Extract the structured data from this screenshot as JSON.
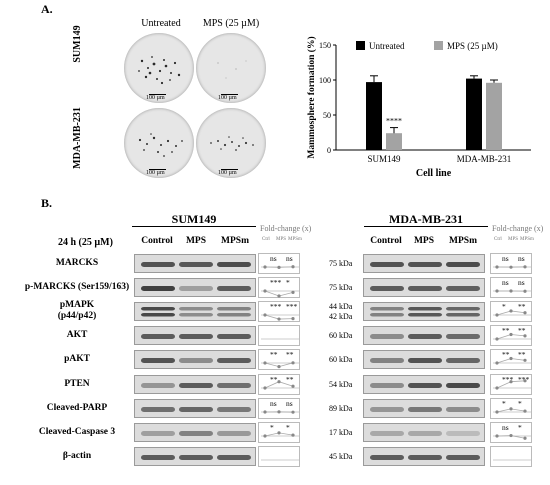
{
  "panel_a": {
    "label": "A.",
    "microscopy": {
      "col_headers": [
        "Untreated",
        "MPS (25 µM)"
      ],
      "row_labels": [
        "SUM149",
        "MDA-MB-231"
      ],
      "scale_bar": "100 µm"
    }
  },
  "chart_data": {
    "type": "bar",
    "title": "",
    "ylabel": "Mammosphere formation (%)",
    "xlabel": "Cell line",
    "categories": [
      "SUM149",
      "MDA-MB-231"
    ],
    "ylim": [
      0,
      150
    ],
    "yticks": [
      0,
      50,
      100,
      150
    ],
    "legend_position": "top-right",
    "series": [
      {
        "name": "Untreated",
        "color": "#000000",
        "values": [
          97,
          102
        ],
        "errors": [
          9,
          4
        ]
      },
      {
        "name": "MPS (25 µM)",
        "color": "#a3a3a3",
        "values": [
          24,
          96
        ],
        "errors": [
          8,
          4
        ]
      }
    ],
    "annotations": [
      {
        "category": "SUM149",
        "series": "MPS (25 µM)",
        "text": "****"
      }
    ]
  },
  "panel_b": {
    "label": "B.",
    "condition": "24 h (25 µM)",
    "lane_labels": [
      "Control",
      "MPS",
      "MPSm"
    ],
    "fold_header": "Fold-change (x)",
    "fold_sub": [
      "Ctrl",
      "MPS",
      "MPSm"
    ],
    "proteins": [
      "MARCKS",
      "p-MARCKS (Ser159/163)",
      "pMAPK\n(p44/p42)",
      "AKT",
      "pAKT",
      "PTEN",
      "Cleaved-PARP",
      "Cleaved-Caspase 3",
      "β-actin"
    ],
    "sum149": {
      "title": "SUM149",
      "fold": [
        {
          "sig": [
            "ns",
            "ns"
          ],
          "values": [
            1,
            0.96,
            1.03
          ]
        },
        {
          "sig": [
            "***",
            "*"
          ],
          "values": [
            1,
            0.45,
            0.85
          ]
        },
        {
          "sig": [
            "***",
            "***"
          ],
          "values": [
            1,
            0.55,
            0.6
          ]
        },
        {
          "sig": [
            "",
            ""
          ],
          "values": []
        },
        {
          "sig": [
            "**",
            "**"
          ],
          "values": [
            1,
            0.6,
            1.02
          ]
        },
        {
          "sig": [
            "**",
            "**"
          ],
          "values": [
            1,
            1.7,
            1.2
          ]
        },
        {
          "sig": [
            "ns",
            "ns"
          ],
          "values": [
            1,
            1.02,
            0.98
          ]
        },
        {
          "sig": [
            "*",
            "*"
          ],
          "values": [
            1,
            1.35,
            1.1
          ]
        },
        {
          "sig": [
            "",
            ""
          ],
          "values": []
        }
      ]
    },
    "mda": {
      "title": "MDA-MB-231",
      "kda": [
        "75 kDa",
        "75 kDa",
        "44 kDa\n42 kDa",
        "60 kDa",
        "60 kDa",
        "54 kDa",
        "89 kDa",
        "17 kDa",
        "45 kDa"
      ],
      "fold": [
        {
          "sig": [
            "ns",
            "ns"
          ],
          "values": [
            1,
            0.98,
            1.02
          ]
        },
        {
          "sig": [
            "ns",
            "ns"
          ],
          "values": [
            1,
            1.0,
            0.97
          ]
        },
        {
          "sig": [
            "*",
            "**"
          ],
          "values": [
            1,
            1.45,
            1.25
          ]
        },
        {
          "sig": [
            "**",
            "**"
          ],
          "values": [
            1,
            1.5,
            1.35
          ]
        },
        {
          "sig": [
            "**",
            "**"
          ],
          "values": [
            1,
            1.5,
            1.3
          ]
        },
        {
          "sig": [
            "***",
            "***"
          ],
          "values": [
            1,
            1.7,
            1.8
          ]
        },
        {
          "sig": [
            "*",
            "*"
          ],
          "values": [
            1,
            1.35,
            1.1
          ]
        },
        {
          "sig": [
            "ns",
            "*"
          ],
          "values": [
            1,
            1.05,
            0.75
          ]
        },
        {
          "sig": [
            "",
            ""
          ],
          "values": []
        }
      ]
    }
  }
}
